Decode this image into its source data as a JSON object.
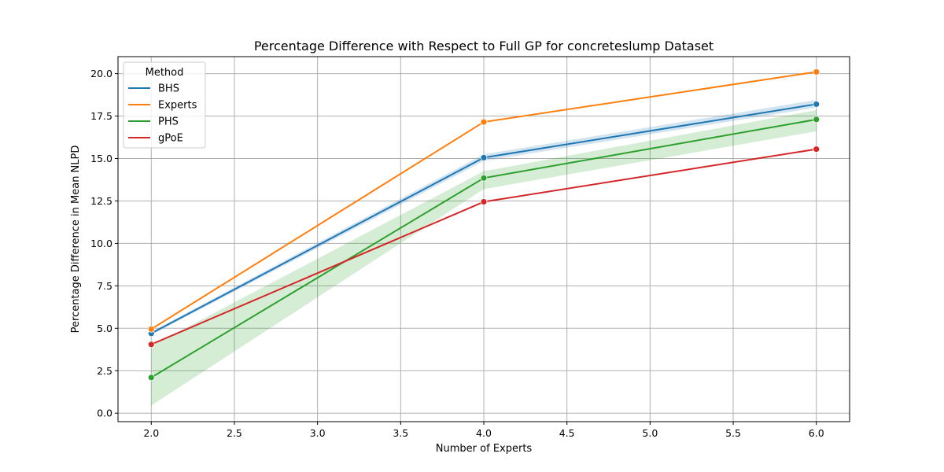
{
  "chart_data": {
    "type": "line",
    "title": "Percentage Difference with Respect to Full GP for concreteslump Dataset",
    "xlabel": "Number of Experts",
    "ylabel": "Percentage Difference in Mean NLPD",
    "xlim": [
      1.8,
      6.2
    ],
    "ylim": [
      -0.5,
      21.0
    ],
    "xticks": [
      2.0,
      2.5,
      3.0,
      3.5,
      4.0,
      4.5,
      5.0,
      5.5,
      6.0
    ],
    "xtick_labels": [
      "2.0",
      "2.5",
      "3.0",
      "3.5",
      "4.0",
      "4.5",
      "5.0",
      "5.5",
      "6.0"
    ],
    "yticks": [
      0.0,
      2.5,
      5.0,
      7.5,
      10.0,
      12.5,
      15.0,
      17.5,
      20.0
    ],
    "ytick_labels": [
      "0.0",
      "2.5",
      "5.0",
      "7.5",
      "10.0",
      "12.5",
      "15.0",
      "17.5",
      "20.0"
    ],
    "grid": true,
    "legend": {
      "title": "Method",
      "placement": "top-left"
    },
    "x": [
      2,
      4,
      6
    ],
    "series": [
      {
        "name": "BHS",
        "color": "#1f77b4",
        "values": [
          4.7,
          15.05,
          18.2
        ],
        "ci_low": [
          4.6,
          14.85,
          18.0
        ],
        "ci_high": [
          4.8,
          15.25,
          18.45
        ]
      },
      {
        "name": "Experts",
        "color": "#ff7f0e",
        "values": [
          4.95,
          17.15,
          20.1
        ]
      },
      {
        "name": "PHS",
        "color": "#2ca02c",
        "values": [
          2.1,
          13.85,
          17.3
        ],
        "ci_low": [
          0.45,
          13.2,
          16.6
        ],
        "ci_high": [
          3.95,
          14.25,
          17.85
        ]
      },
      {
        "name": "gPoE",
        "color": "#d62728",
        "values": [
          4.05,
          12.45,
          15.55
        ]
      }
    ]
  }
}
